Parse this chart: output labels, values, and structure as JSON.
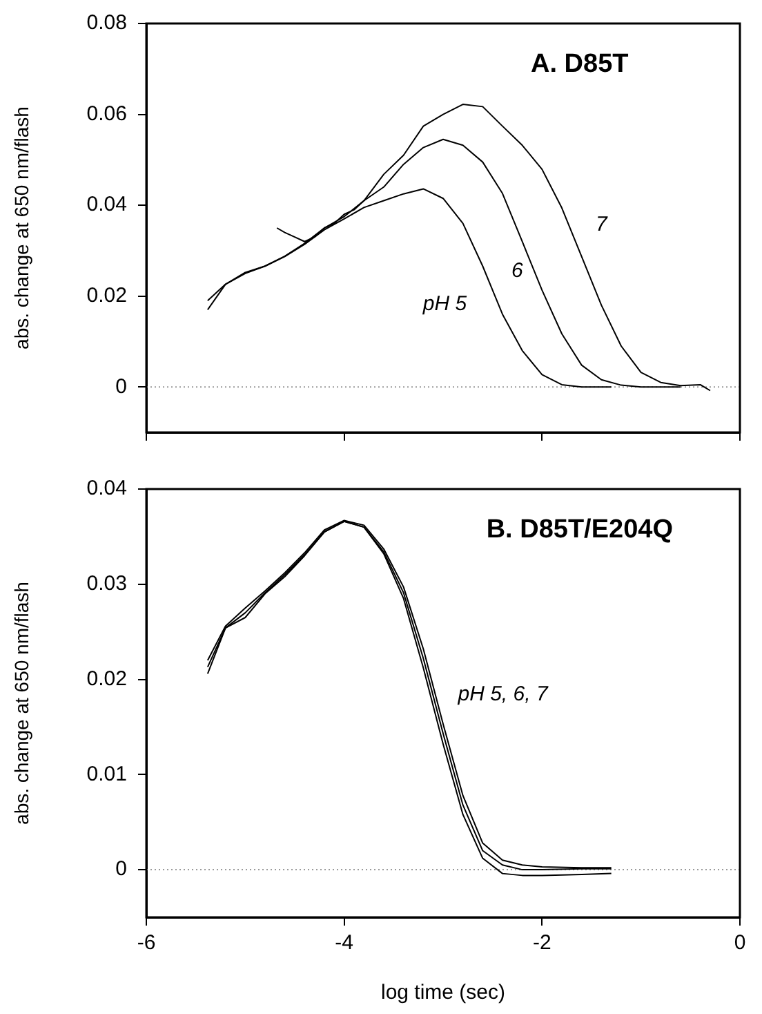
{
  "chart_data": [
    {
      "type": "line",
      "title": "A. D85T",
      "ylabel": "abs. change at 650 nm/flash",
      "xlim": [
        -6,
        0
      ],
      "xticks": [
        -6,
        -4,
        -2,
        0
      ],
      "ylim": [
        -0.01,
        0.08
      ],
      "yticks": [
        0,
        0.02,
        0.04,
        0.06,
        0.08
      ],
      "tick_labels": "y",
      "grid": false,
      "legend": false,
      "marker": "none",
      "line_style": "solid",
      "ref_lines": [
        {
          "axis": "y",
          "value": 0,
          "color": "#9a9a9a",
          "line_style": "dotted"
        }
      ],
      "annotations": [
        "pH 5",
        "6",
        "7"
      ],
      "series": [
        {
          "color": "#000000",
          "x": [
            -5.38,
            -5.2,
            -5.0,
            -4.8,
            -4.6,
            -4.4,
            -4.2,
            -4.0,
            -3.8,
            -3.6,
            -3.4,
            -3.2,
            -3.0,
            -2.8,
            -2.6,
            -2.5,
            -2.4,
            -2.2,
            -2.0,
            -1.8,
            -1.6,
            -1.3
          ],
          "values": [
            0.017,
            0.0226,
            0.025,
            0.0266,
            0.0287,
            0.0314,
            0.0346,
            0.037,
            0.0395,
            0.041,
            0.0425,
            0.0436,
            0.0415,
            0.036,
            0.0266,
            0.0213,
            0.016,
            0.008,
            0.0027,
            0.0005,
            0.0,
            0.0
          ]
        },
        {
          "color": "#000000",
          "x": [
            -5.38,
            -5.2,
            -5.0,
            -4.8,
            -4.6,
            -4.4,
            -4.2,
            -4.0,
            -3.8,
            -3.6,
            -3.4,
            -3.2,
            -3.0,
            -2.8,
            -2.6,
            -2.4,
            -2.2,
            -2.0,
            -1.8,
            -1.6,
            -1.4,
            -1.2,
            -1.0,
            -0.6
          ],
          "values": [
            0.019,
            0.0226,
            0.0252,
            0.0266,
            0.0288,
            0.0316,
            0.035,
            0.0375,
            0.041,
            0.044,
            0.049,
            0.0527,
            0.0545,
            0.0532,
            0.0495,
            0.0426,
            0.032,
            0.0213,
            0.0117,
            0.0048,
            0.0016,
            0.0004,
            0.0,
            0.0
          ]
        },
        {
          "color": "#000000",
          "x": [
            -4.68,
            -4.6,
            -4.5,
            -4.4,
            -4.3,
            -4.2,
            -4.1,
            -4.0,
            -3.9,
            -3.8,
            -3.6,
            -3.4,
            -3.2,
            -3.0,
            -2.8,
            -2.6,
            -2.4,
            -2.2,
            -2.0,
            -1.8,
            -1.6,
            -1.4,
            -1.2,
            -1.0,
            -0.8,
            -0.6,
            -0.4,
            -0.3
          ],
          "values": [
            0.035,
            0.034,
            0.033,
            0.032,
            0.033,
            0.035,
            0.036,
            0.038,
            0.039,
            0.041,
            0.0468,
            0.051,
            0.0574,
            0.06,
            0.0622,
            0.0617,
            0.0574,
            0.0532,
            0.0479,
            0.0394,
            0.0287,
            0.018,
            0.009,
            0.0032,
            0.001,
            0.0003,
            0.0005,
            -0.0008
          ]
        }
      ]
    },
    {
      "type": "line",
      "title": "B. D85T/E204Q",
      "xlabel": "log time (sec)",
      "ylabel": "abs. change at 650 nm/flash",
      "xlim": [
        -6,
        0
      ],
      "xticks": [
        -6,
        -4,
        -2,
        0
      ],
      "ylim": [
        -0.005,
        0.04
      ],
      "yticks": [
        0,
        0.01,
        0.02,
        0.03,
        0.04
      ],
      "grid": false,
      "legend": false,
      "marker": "none",
      "line_style": "solid",
      "ref_lines": [
        {
          "axis": "y",
          "value": 0,
          "color": "#9a9a9a",
          "line_style": "dotted"
        }
      ],
      "annotations": [
        "pH 5, 6, 7"
      ],
      "series": [
        {
          "color": "#000000",
          "x": [
            -5.38,
            -5.2,
            -5.0,
            -4.8,
            -4.6,
            -4.4,
            -4.2,
            -4.0,
            -3.8,
            -3.6,
            -3.4,
            -3.2,
            -3.0,
            -2.8,
            -2.6,
            -2.4,
            -2.2,
            -2.0,
            -1.6,
            -1.3
          ],
          "values": [
            0.0206,
            0.0254,
            0.0265,
            0.029,
            0.0308,
            0.033,
            0.0355,
            0.0366,
            0.036,
            0.0332,
            0.0285,
            0.0212,
            0.0132,
            0.0058,
            0.0012,
            -0.0004,
            -0.0006,
            -0.0006,
            -0.0005,
            -0.0004
          ]
        },
        {
          "color": "#000000",
          "x": [
            -5.38,
            -5.2,
            -5.0,
            -4.8,
            -4.6,
            -4.4,
            -4.2,
            -4.0,
            -3.8,
            -3.6,
            -3.4,
            -3.2,
            -3.0,
            -2.8,
            -2.6,
            -2.4,
            -2.2,
            -2.0,
            -1.6,
            -1.3
          ],
          "values": [
            0.0213,
            0.0254,
            0.027,
            0.0291,
            0.031,
            0.0331,
            0.0355,
            0.0366,
            0.036,
            0.0334,
            0.0291,
            0.0222,
            0.0143,
            0.0068,
            0.002,
            0.0005,
            0.0,
            0.0,
            0.0001,
            0.0001
          ]
        },
        {
          "color": "#000000",
          "x": [
            -5.38,
            -5.2,
            -5.0,
            -4.8,
            -4.6,
            -4.4,
            -4.2,
            -4.0,
            -3.8,
            -3.6,
            -3.4,
            -3.2,
            -3.0,
            -2.8,
            -2.6,
            -2.4,
            -2.2,
            -2.0,
            -1.6,
            -1.3
          ],
          "values": [
            0.022,
            0.0256,
            0.0275,
            0.0293,
            0.0312,
            0.0333,
            0.0357,
            0.0367,
            0.0362,
            0.0337,
            0.0297,
            0.0232,
            0.0153,
            0.0078,
            0.0028,
            0.001,
            0.0005,
            0.0003,
            0.0002,
            0.0002
          ]
        }
      ]
    }
  ]
}
